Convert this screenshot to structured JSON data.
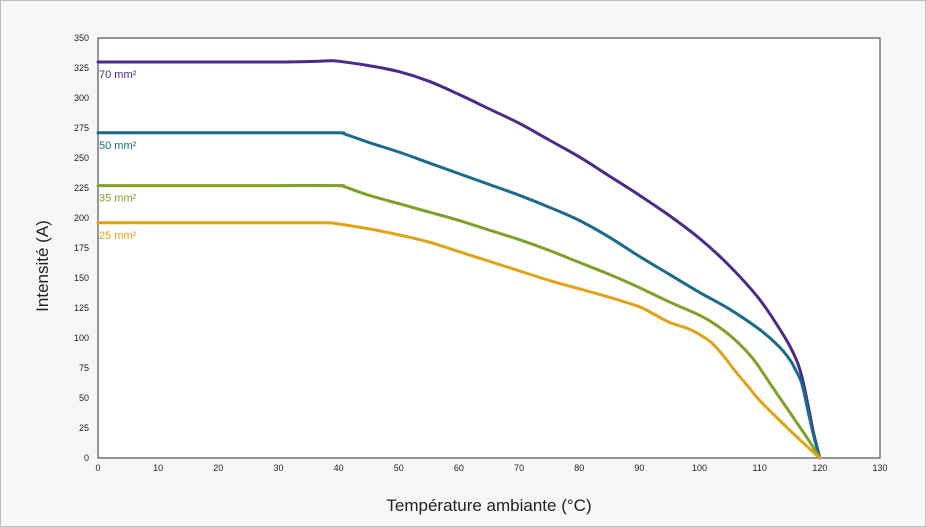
{
  "chart_data": {
    "type": "line",
    "xlabel": "Température ambiante (°C)",
    "ylabel": "Intensité (A)",
    "xlim": [
      0,
      130
    ],
    "ylim": [
      0,
      350
    ],
    "xticks": [
      0,
      10,
      20,
      30,
      40,
      50,
      60,
      70,
      80,
      90,
      100,
      110,
      120,
      130
    ],
    "yticks": [
      0,
      25,
      50,
      75,
      100,
      125,
      150,
      175,
      200,
      225,
      250,
      275,
      300,
      325,
      350
    ],
    "grid": false,
    "series": [
      {
        "name": "70 mm²",
        "color": "#4a2a8a",
        "points": [
          [
            0,
            330
          ],
          [
            10,
            330
          ],
          [
            20,
            330
          ],
          [
            30,
            330
          ],
          [
            36,
            330.5
          ],
          [
            39,
            331
          ],
          [
            41,
            330
          ],
          [
            45,
            327
          ],
          [
            50,
            322
          ],
          [
            55,
            314
          ],
          [
            60,
            303
          ],
          [
            65,
            291
          ],
          [
            70,
            279
          ],
          [
            75,
            265
          ],
          [
            80,
            251
          ],
          [
            85,
            235
          ],
          [
            90,
            219
          ],
          [
            95,
            202
          ],
          [
            100,
            183
          ],
          [
            105,
            160
          ],
          [
            110,
            132
          ],
          [
            114,
            102
          ],
          [
            116,
            83
          ],
          [
            117,
            68
          ],
          [
            118,
            45
          ],
          [
            119,
            20
          ],
          [
            120,
            0
          ]
        ]
      },
      {
        "name": "50 mm²",
        "color": "#1a6a8e",
        "points": [
          [
            0,
            271
          ],
          [
            10,
            271
          ],
          [
            20,
            271
          ],
          [
            30,
            271
          ],
          [
            40,
            271
          ],
          [
            41,
            270
          ],
          [
            45,
            263
          ],
          [
            50,
            255
          ],
          [
            55,
            246
          ],
          [
            60,
            237
          ],
          [
            65,
            228
          ],
          [
            70,
            219
          ],
          [
            75,
            209
          ],
          [
            80,
            198
          ],
          [
            85,
            184
          ],
          [
            90,
            168
          ],
          [
            95,
            153
          ],
          [
            100,
            138
          ],
          [
            105,
            124
          ],
          [
            110,
            107
          ],
          [
            113,
            94
          ],
          [
            115,
            82
          ],
          [
            116,
            73
          ],
          [
            117,
            62
          ],
          [
            118,
            40
          ],
          [
            119,
            18
          ],
          [
            120,
            0
          ]
        ]
      },
      {
        "name": "35 mm²",
        "color": "#7fa12a",
        "points": [
          [
            0,
            227
          ],
          [
            10,
            227
          ],
          [
            20,
            227
          ],
          [
            30,
            227
          ],
          [
            40,
            227
          ],
          [
            41,
            226
          ],
          [
            45,
            219
          ],
          [
            50,
            212
          ],
          [
            55,
            205
          ],
          [
            60,
            198
          ],
          [
            65,
            190
          ],
          [
            70,
            182
          ],
          [
            75,
            173
          ],
          [
            80,
            163
          ],
          [
            85,
            153
          ],
          [
            90,
            142
          ],
          [
            95,
            130
          ],
          [
            100,
            119
          ],
          [
            103,
            110
          ],
          [
            106,
            98
          ],
          [
            109,
            82
          ],
          [
            112,
            60
          ],
          [
            115,
            38
          ],
          [
            118,
            16
          ],
          [
            120,
            0
          ]
        ]
      },
      {
        "name": "25 mm²",
        "color": "#e0a316",
        "points": [
          [
            0,
            196
          ],
          [
            10,
            196
          ],
          [
            20,
            196
          ],
          [
            30,
            196
          ],
          [
            38,
            196
          ],
          [
            40,
            195
          ],
          [
            45,
            191
          ],
          [
            50,
            186
          ],
          [
            55,
            180
          ],
          [
            60,
            172
          ],
          [
            65,
            164
          ],
          [
            70,
            156
          ],
          [
            75,
            148
          ],
          [
            80,
            141
          ],
          [
            85,
            134
          ],
          [
            90,
            126
          ],
          [
            92,
            121
          ],
          [
            95,
            113
          ],
          [
            98,
            108
          ],
          [
            100,
            103
          ],
          [
            102,
            96
          ],
          [
            104,
            85
          ],
          [
            106,
            72
          ],
          [
            108,
            60
          ],
          [
            110,
            48
          ],
          [
            114,
            28
          ],
          [
            118,
            9
          ],
          [
            120,
            0
          ]
        ]
      }
    ],
    "series_labels": [
      {
        "text": "70 mm²",
        "x": 0,
        "y": 320
      },
      {
        "text": "50 mm²",
        "x": 0,
        "y": 261
      },
      {
        "text": "35 mm²",
        "x": 0,
        "y": 217
      },
      {
        "text": "25 mm²",
        "x": 0,
        "y": 186
      }
    ]
  }
}
